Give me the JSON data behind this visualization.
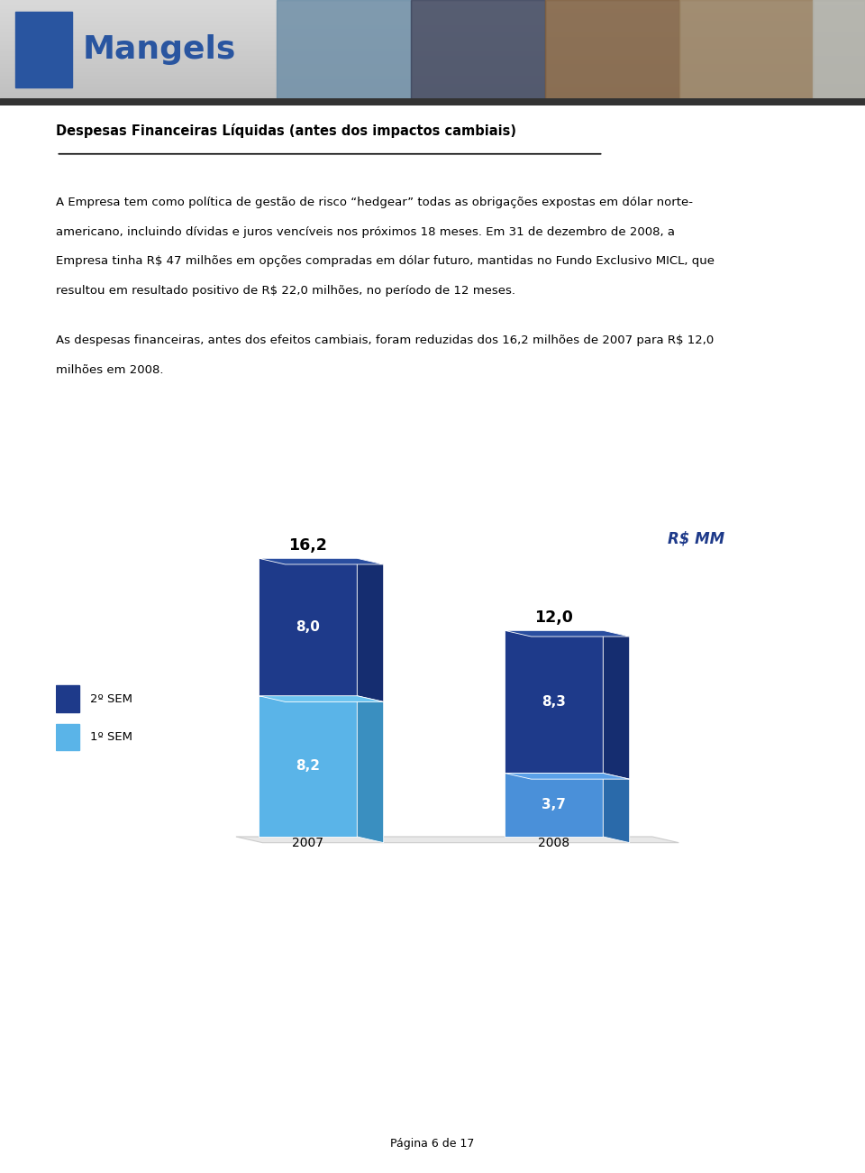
{
  "title": "Despesas Financeiras Líquidas (antes dos impactos cambiais)",
  "para1_line1": "A Empresa tem como política de gestão de risco “hedgear” todas as obrigações expostas em dólar norte-",
  "para1_line2": "americano, incluindo dívidas e juros vencíveis nos próximos 18 meses. Em 31 de dezembro de 2008, a",
  "para1_line3": "Empresa tinha R$ 47 milhões em opções compradas em dólar futuro, mantidas no Fundo Exclusivo MICL, que",
  "para1_line4": "resultou em resultado positivo de R$ 22,0 milhões, no período de 12 meses.",
  "para2_line1": "As despesas financeiras, antes dos efeitos cambiais, foram reduzidas dos 16,2 milhões de 2007 para R$ 12,0",
  "para2_line2": "milhões em 2008.",
  "footer": "Página 6 de 17",
  "chart_unit": "R$ MM",
  "categories": [
    "2007",
    "2008"
  ],
  "sem2_values": [
    8.0,
    8.3
  ],
  "sem1_values": [
    8.2,
    3.7
  ],
  "totals": [
    "16,2",
    "12,0"
  ],
  "sem2_label": "2º SEM",
  "sem1_label": "1º SEM",
  "color_2007_bottom_front": "#5ab4e8",
  "color_2007_bottom_side": "#3a8fc0",
  "color_2007_bottom_top": "#6cc4f0",
  "color_2007_top_front": "#1e3a8a",
  "color_2007_top_side": "#152d70",
  "color_2007_top_top": "#2a4ea0",
  "color_2008_bottom_front": "#4a90d9",
  "color_2008_bottom_side": "#2a6aaa",
  "color_2008_bottom_top": "#5aa0e8",
  "color_2008_top_front": "#1e3a8a",
  "color_2008_top_side": "#152d70",
  "color_2008_top_top": "#2a4ea0",
  "legend_sem2_color": "#1e3a8a",
  "legend_sem1_color": "#5ab4e8",
  "floor_color": "#e8e8e8",
  "floor_edge_color": "#cccccc",
  "page_bg": "#ffffff",
  "header_bg": "#c8c8c8",
  "bar_label_color": "#ffffff",
  "total_label_color": "#000000",
  "rs_mm_color": "#1e3a8a"
}
